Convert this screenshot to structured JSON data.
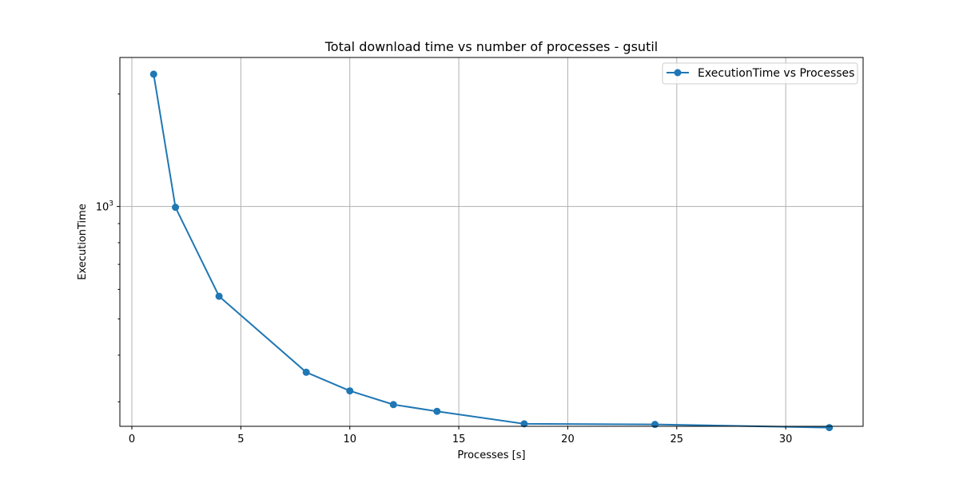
{
  "chart_data": {
    "type": "line",
    "title": "Total download time vs number of processes - gsutil",
    "xlabel": "Processes [s]",
    "ylabel": "ExecutionTime",
    "xlim": [
      -0.55,
      33.55
    ],
    "ylim": [
      258,
      2505
    ],
    "yscale": "log",
    "x_ticks": [
      0,
      5,
      10,
      15,
      20,
      25,
      30
    ],
    "x_tick_labels": [
      "0",
      "5",
      "10",
      "15",
      "20",
      "25",
      "30"
    ],
    "y_major_ticks": [
      1000
    ],
    "y_major_tick_labels": [
      "10",
      "3"
    ],
    "y_minor_ticks": [
      300,
      400,
      500,
      600,
      700,
      800,
      900,
      2000
    ],
    "grid": true,
    "legend_position": "top-right",
    "series": [
      {
        "name": "ExecutionTime vs Processes",
        "color": "#1f77b4",
        "marker": "circle",
        "x": [
          1,
          2,
          4,
          8,
          10,
          12,
          14,
          18,
          24,
          32
        ],
        "y": [
          2260,
          995,
          575,
          360,
          321,
          295,
          283,
          262,
          261,
          256
        ]
      }
    ]
  }
}
